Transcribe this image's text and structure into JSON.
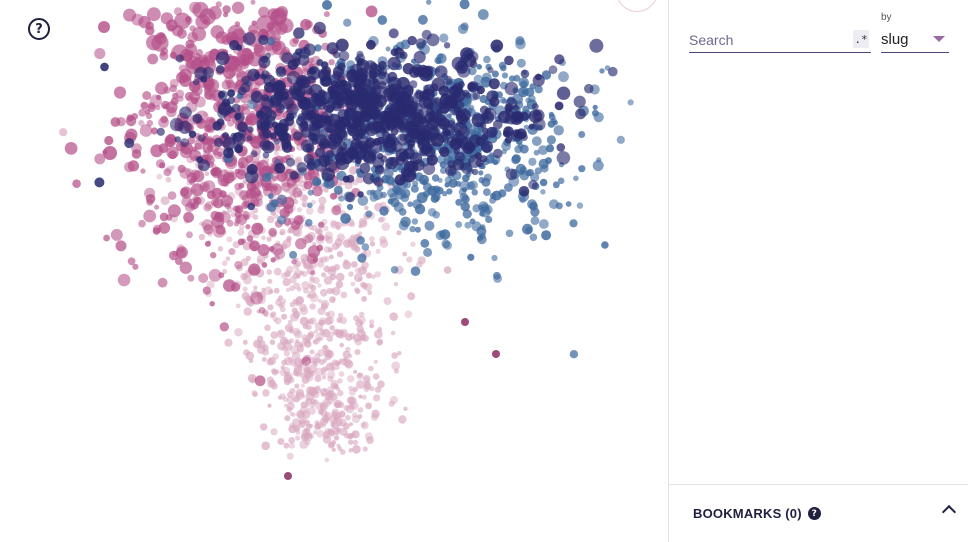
{
  "help": {
    "symbol": "?",
    "icon": "help-circle-icon"
  },
  "search": {
    "placeholder": "Search",
    "value": "",
    "regex_symbol": ".*",
    "by_label": "by",
    "by_value": "slug"
  },
  "bookmarks": {
    "label": "BOOKMARKS (0)",
    "help_symbol": "?",
    "icon": "chevron-up-icon"
  },
  "colors": {
    "navy": "#2a2a70",
    "blue": "#3f6a9f",
    "magenta": "#b44f88",
    "pink": "#d9a8c0"
  }
}
